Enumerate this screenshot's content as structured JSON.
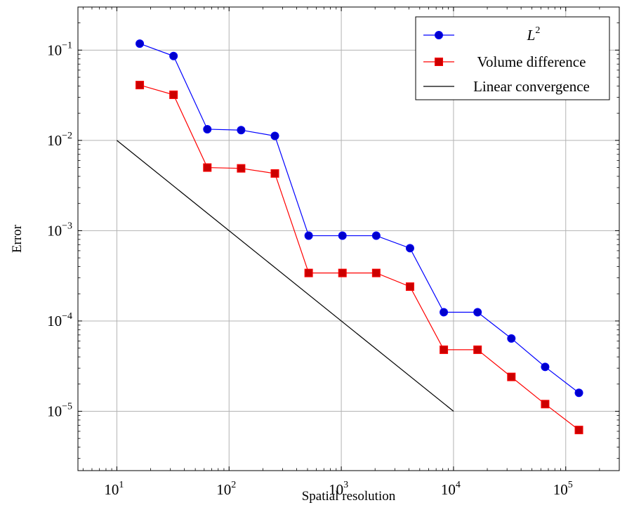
{
  "chart_data": {
    "type": "line",
    "xscale": "log",
    "yscale": "log",
    "xlabel": "Spatial resolution",
    "ylabel": "Error",
    "xlim": [
      4.5,
      300000
    ],
    "ylim": [
      2.2e-06,
      0.3
    ],
    "grid": true,
    "legend_position": "top-right",
    "x_tick_labels": [
      {
        "value": 10,
        "base": "10",
        "exp": "1"
      },
      {
        "value": 100,
        "base": "10",
        "exp": "2"
      },
      {
        "value": 1000,
        "base": "10",
        "exp": "3"
      },
      {
        "value": 10000,
        "base": "10",
        "exp": "4"
      },
      {
        "value": 100000,
        "base": "10",
        "exp": "5"
      }
    ],
    "y_tick_labels": [
      {
        "value": 0.1,
        "base": "10",
        "exp": "−1"
      },
      {
        "value": 0.01,
        "base": "10",
        "exp": "−2"
      },
      {
        "value": 0.001,
        "base": "10",
        "exp": "−3"
      },
      {
        "value": 0.0001,
        "base": "10",
        "exp": "−4"
      },
      {
        "value": 1e-05,
        "base": "10",
        "exp": "−5"
      }
    ],
    "series": [
      {
        "name_base": "L",
        "name_sup": "2",
        "color": "#0000ff",
        "fill": "#0000cc",
        "marker": "circle",
        "x": [
          16,
          32,
          64,
          128,
          256,
          512,
          1024,
          2048,
          4096,
          8192,
          16384,
          32768,
          65536,
          131072
        ],
        "y": [
          0.118,
          0.086,
          0.0133,
          0.013,
          0.0112,
          0.00088,
          0.00088,
          0.00088,
          0.00064,
          0.000125,
          0.000125,
          6.4e-05,
          3.1e-05,
          1.6e-05
        ]
      },
      {
        "name": "Volume difference",
        "color": "#ff0000",
        "fill": "#cc0000",
        "marker": "square",
        "x": [
          16,
          32,
          64,
          128,
          256,
          512,
          1024,
          2048,
          4096,
          8192,
          16384,
          32768,
          65536,
          131072
        ],
        "y": [
          0.041,
          0.032,
          0.005,
          0.0049,
          0.0043,
          0.00034,
          0.00034,
          0.00034,
          0.00024,
          4.8e-05,
          4.8e-05,
          2.4e-05,
          1.2e-05,
          6.2e-06
        ]
      },
      {
        "name": "Linear convergence",
        "color": "#000000",
        "marker": "none",
        "x": [
          10,
          10000
        ],
        "y": [
          0.01,
          1e-05
        ]
      }
    ]
  }
}
